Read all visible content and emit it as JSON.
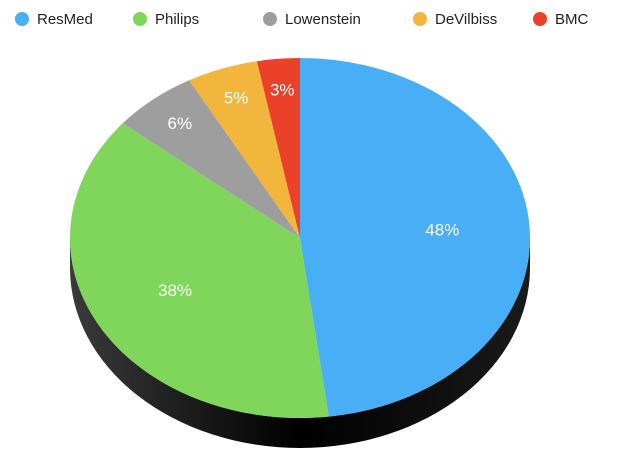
{
  "chart_data": {
    "type": "pie",
    "categories": [
      "ResMed",
      "Philips",
      "Lowenstein",
      "DeVilbiss",
      "BMC"
    ],
    "values": [
      48,
      38,
      6,
      5,
      3
    ],
    "value_labels": [
      "48%",
      "38%",
      "6%",
      "5%",
      "3%"
    ],
    "colors": [
      "#48aef5",
      "#7fd65a",
      "#9e9e9e",
      "#f2b63d",
      "#ea4128"
    ],
    "legend": "top"
  }
}
